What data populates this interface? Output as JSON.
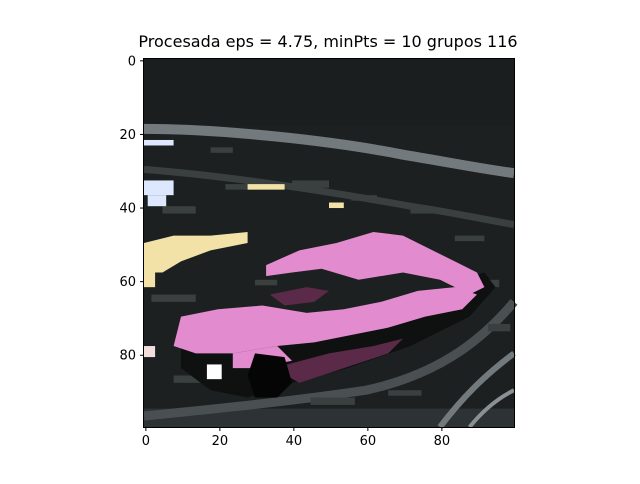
{
  "chart_data": {
    "type": "heatmap",
    "title": "Procesada eps = 4.75, minPts = 10 grupos 116",
    "xlabel": "",
    "ylabel": "",
    "xlim": [
      0,
      99
    ],
    "ylim": [
      99,
      0
    ],
    "x_ticks": [
      "0",
      "20",
      "40",
      "60",
      "80"
    ],
    "y_ticks": [
      "0",
      "20",
      "40",
      "60",
      "80"
    ],
    "x_tick_values": [
      0,
      20,
      40,
      60,
      80
    ],
    "y_tick_values": [
      0,
      20,
      40,
      60,
      80
    ],
    "image_description": "Clustered pixel image of a car: pink car body on dark background with gray road curves",
    "cluster_colors": {
      "background": "#1c2020",
      "car_body": "#e38bcf",
      "car_shadow": "#5a2a48",
      "road_gray": "#737a7d",
      "dark_gray": "#3a3f40",
      "light_blue": "#dde8ff",
      "pale_yellow": "#f2e2a8",
      "white": "#ffffff",
      "black": "#050505"
    }
  }
}
